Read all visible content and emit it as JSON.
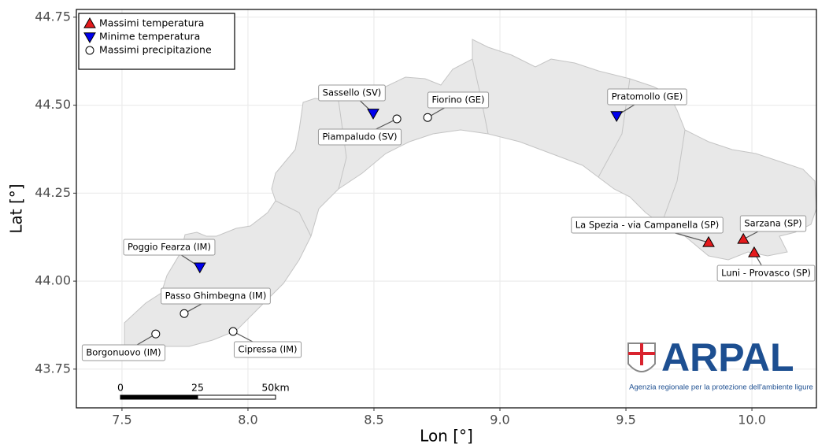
{
  "chart_data": {
    "type": "scatter",
    "xlabel": "Lon [°]",
    "ylabel": "Lat [°]",
    "xlim": [
      7.319,
      10.256
    ],
    "ylim": [
      43.64,
      44.772
    ],
    "xticks": [
      7.5,
      {
        "value": 8,
        "label": "8.0"
      },
      8.5,
      {
        "value": 9,
        "label": "9.0"
      },
      9.5,
      {
        "value": 10,
        "label": "10.0"
      }
    ],
    "yticks": [
      43.75,
      {
        "value": 44,
        "label": "44.00"
      },
      44.25,
      {
        "value": 44.5,
        "label": "44.50"
      },
      44.75
    ],
    "grid": true,
    "legend": "top-left",
    "series": [
      {
        "name": "Massimi temperatura",
        "color": "#e41a1c",
        "marker": "triangle-up",
        "x": [
          9.828,
          9.966,
          10.009
        ],
        "y": [
          44.11,
          44.119,
          44.081
        ],
        "labels": [
          "La Spezia - via Campanella (SP)",
          "Sarzana (SP)",
          "Luni - Provasco (SP)"
        ]
      },
      {
        "name": "Minime temperatura",
        "color": "#0000ee",
        "marker": "triangle-down",
        "x": [
          8.497,
          9.463,
          7.809
        ],
        "y": [
          44.477,
          44.47,
          44.04
        ],
        "labels": [
          "Sassello (SV)",
          "Pratomollo (GE)",
          "Poggio Fearza (IM)"
        ]
      },
      {
        "name": "Massimi precipitazione",
        "color": "#ffffff",
        "marker": "circle",
        "x": [
          8.591,
          8.713,
          7.747,
          7.941,
          7.634
        ],
        "y": [
          44.461,
          44.465,
          43.908,
          43.857,
          43.85
        ],
        "labels": [
          "Piampaludo (SV)",
          "Fiorino (GE)",
          "Passo Ghimbegna (IM)",
          "Cipressa (IM)",
          "Borgonuovo (IM)"
        ]
      }
    ],
    "scale_bar": {
      "labels": [
        "0",
        "25",
        "50km"
      ]
    },
    "logo": {
      "name": "ARPAL",
      "subtitle": "Agenzia regionale per la protezione dell'ambiente ligure"
    }
  }
}
